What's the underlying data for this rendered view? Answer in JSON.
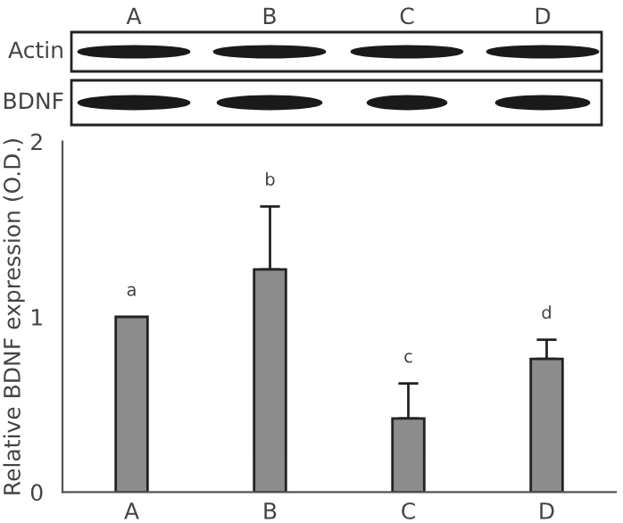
{
  "chart_data": {
    "type": "bar",
    "ylabel": "Relative BDNF expression (O.D.)",
    "categories": [
      "A",
      "B",
      "C",
      "D"
    ],
    "values": [
      1.0,
      1.27,
      0.42,
      0.76
    ],
    "errors": [
      null,
      [
        1.27,
        1.63
      ],
      [
        0.42,
        0.62
      ],
      [
        0.76,
        0.87
      ]
    ],
    "color": "#8c8c8c",
    "ylim": [
      0,
      2
    ],
    "yticks": [
      0,
      1,
      2
    ],
    "grid": false,
    "annotations": [
      "A",
      "B",
      "C",
      "D",
      "Actin",
      "BDNF",
      "a",
      "b",
      "c",
      "d"
    ]
  }
}
